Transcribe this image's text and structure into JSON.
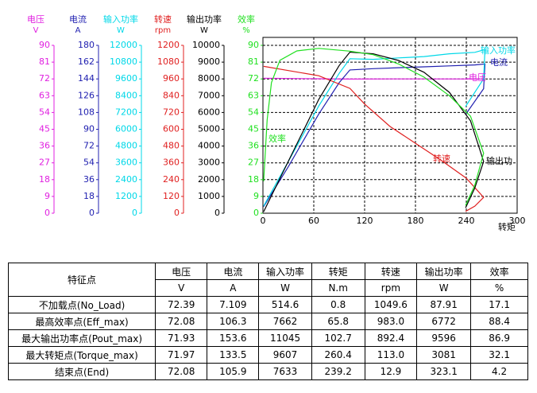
{
  "chart_data": {
    "type": "line",
    "xlabel": "转矩",
    "xlim": [
      0,
      300
    ],
    "xticks": [
      0,
      60,
      120,
      180,
      240,
      300
    ],
    "grid": true,
    "axes": [
      {
        "label": "电压",
        "unit": "V",
        "color": "#e020e0",
        "ylim": [
          0,
          90
        ],
        "yticks": [
          0,
          9,
          18,
          27,
          36,
          45,
          54,
          63,
          72,
          81,
          90
        ]
      },
      {
        "label": "电流",
        "unit": "A",
        "color": "#2020b0",
        "ylim": [
          0,
          180
        ],
        "yticks": [
          0,
          18,
          36,
          54,
          72,
          90,
          108,
          126,
          144,
          162,
          180
        ]
      },
      {
        "label": "输入功率",
        "unit": "W",
        "color": "#00d8e8",
        "ylim": [
          0,
          12000
        ],
        "yticks": [
          0,
          1200,
          2400,
          3600,
          4800,
          6000,
          7200,
          8400,
          9600,
          10800,
          12000
        ]
      },
      {
        "label": "转速",
        "unit": "rpm",
        "color": "#e02020",
        "ylim": [
          0,
          1200
        ],
        "yticks": [
          0,
          120,
          240,
          360,
          480,
          600,
          720,
          840,
          960,
          1080,
          1200
        ]
      },
      {
        "label": "输出功率",
        "unit": "W",
        "color": "#000000",
        "ylim": [
          0,
          10000
        ],
        "yticks": [
          0,
          1000,
          2000,
          3000,
          4000,
          5000,
          6000,
          7000,
          8000,
          9000,
          10000
        ]
      },
      {
        "label": "效率",
        "unit": "%",
        "color": "#20e020",
        "ylim": [
          0,
          90
        ],
        "yticks": [
          0,
          9,
          18,
          27,
          36,
          45,
          54,
          63,
          72,
          81,
          90
        ]
      }
    ],
    "series": [
      {
        "label": "电压",
        "axis": 0,
        "color": "#e020e0",
        "x": [
          0.8,
          65.8,
          102.7,
          150,
          200,
          260.4,
          239.2
        ],
        "values": [
          72.39,
          72.08,
          71.93,
          72,
          72,
          71.97,
          72.08
        ]
      },
      {
        "label": "电流",
        "axis": 1,
        "color": "#2020b0",
        "x": [
          0.8,
          30,
          65.8,
          90,
          102.7,
          130,
          160,
          190,
          220,
          250,
          262,
          260.4,
          239.2
        ],
        "values": [
          7.109,
          50,
          106.3,
          140,
          153.6,
          155,
          156,
          157,
          158,
          159,
          160,
          133.5,
          105.9
        ]
      },
      {
        "label": "输入功率",
        "axis": 2,
        "color": "#00d8e8",
        "x": [
          0.8,
          30,
          65.8,
          90,
          102.7,
          130,
          160,
          190,
          220,
          250,
          262,
          260.4,
          239.2
        ],
        "values": [
          514.6,
          3700,
          7662,
          10000,
          11045,
          11000,
          11100,
          11200,
          11400,
          11500,
          11700,
          9607,
          7633
        ]
      },
      {
        "label": "转速",
        "axis": 3,
        "color": "#e02020",
        "x": [
          0.8,
          30,
          65.8,
          102.7,
          120,
          150,
          180,
          210,
          240,
          260.4,
          250,
          239.2
        ],
        "values": [
          1049.6,
          1020,
          983,
          892.4,
          780,
          620,
          500,
          380,
          250,
          113,
          50,
          12.9
        ]
      },
      {
        "label": "输出功",
        "axis": 4,
        "color": "#000000",
        "x": [
          0.8,
          30,
          65.8,
          90,
          102.7,
          130,
          160,
          190,
          220,
          245,
          260.4,
          250,
          239.2
        ],
        "values": [
          87.91,
          3100,
          6772,
          8800,
          9596,
          9500,
          9100,
          8400,
          7200,
          5500,
          3081,
          1500,
          323.1
        ]
      },
      {
        "label": "效率",
        "axis": 5,
        "color": "#20e020",
        "x": [
          0.8,
          5,
          10,
          20,
          40,
          65.8,
          102.7,
          130,
          160,
          190,
          220,
          245,
          260.4,
          250,
          239.2
        ],
        "values": [
          17.1,
          50,
          70,
          82,
          87,
          88.4,
          86.9,
          85,
          80,
          73,
          63,
          52,
          32.1,
          15,
          4.2
        ]
      }
    ]
  },
  "table": {
    "header": [
      "特征点",
      "电压",
      "电流",
      "输入功率",
      "转矩",
      "转速",
      "输出功率",
      "效率"
    ],
    "units": [
      "V",
      "A",
      "W",
      "N.m",
      "rpm",
      "W",
      "%"
    ],
    "rows": [
      [
        "不加载点(No_Load)",
        "72.39",
        "7.109",
        "514.6",
        "0.8",
        "1049.6",
        "87.91",
        "17.1"
      ],
      [
        "最高效率点(Eff_max)",
        "72.08",
        "106.3",
        "7662",
        "65.8",
        "983.0",
        "6772",
        "88.4"
      ],
      [
        "最大输出功率点(Pout_max)",
        "71.93",
        "153.6",
        "11045",
        "102.7",
        "892.4",
        "9596",
        "86.9"
      ],
      [
        "最大转矩点(Torque_max)",
        "71.97",
        "133.5",
        "9607",
        "260.4",
        "113.0",
        "3081",
        "32.1"
      ],
      [
        "结束点(End)",
        "72.08",
        "105.9",
        "7633",
        "239.2",
        "12.9",
        "323.1",
        "4.2"
      ]
    ]
  }
}
